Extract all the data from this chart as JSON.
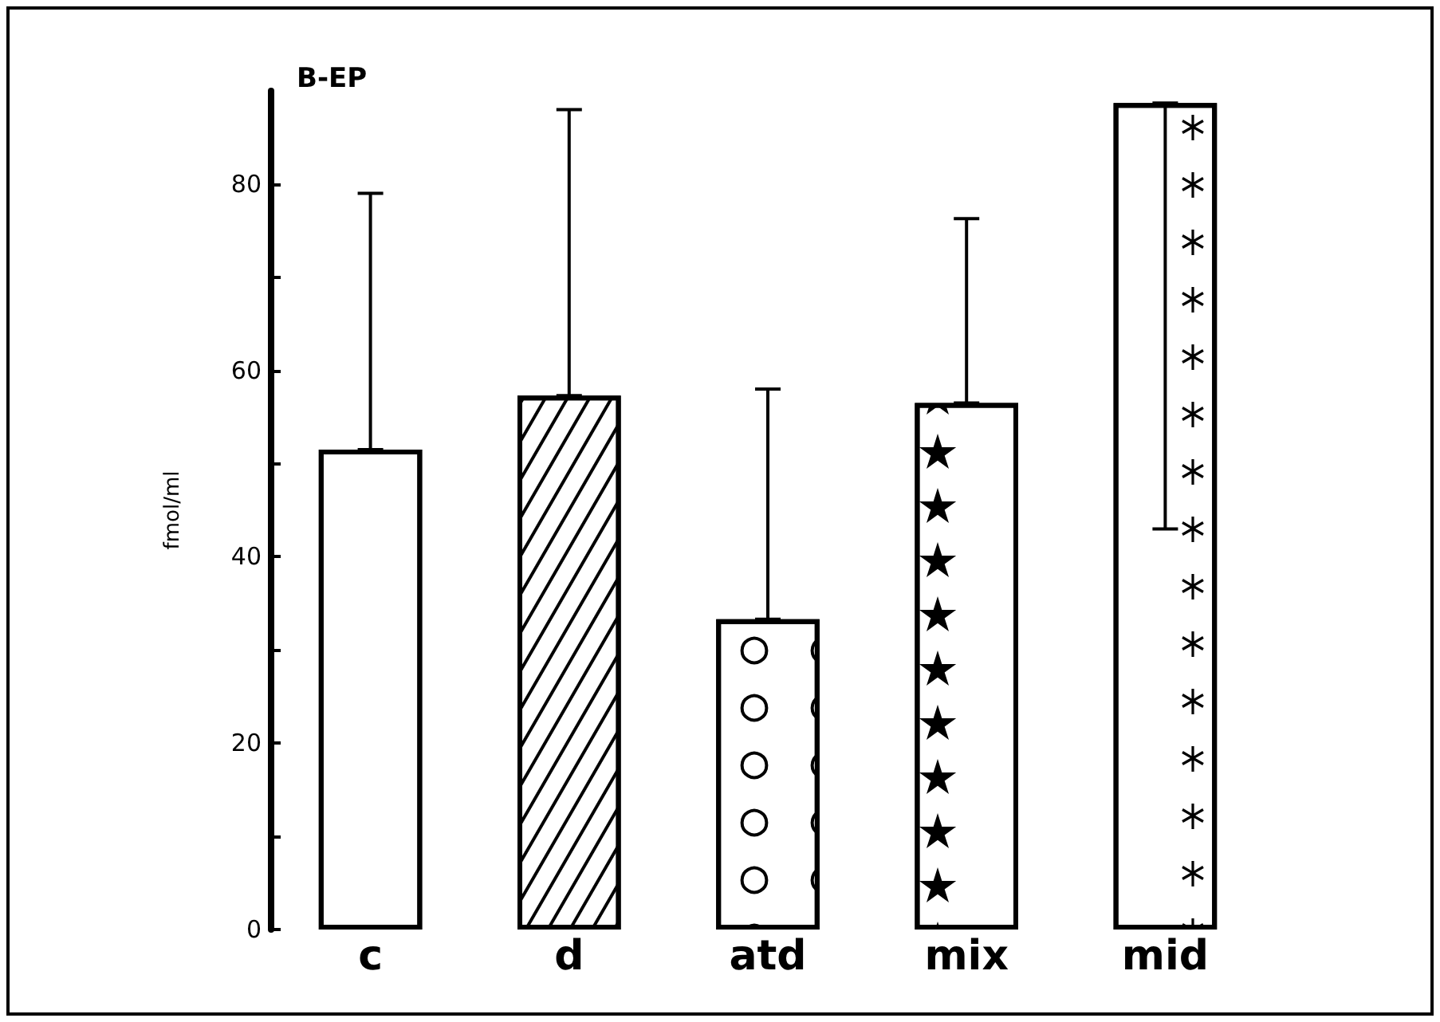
{
  "chart_data": {
    "type": "bar",
    "title": "B-EP",
    "ylabel": "fmol/ml",
    "categories": [
      "c",
      "d",
      "atd",
      "mix",
      "mid"
    ],
    "values": [
      51.5,
      57.3,
      33.3,
      56.5,
      88.7
    ],
    "errors": [
      [
        51.5,
        79
      ],
      [
        57.3,
        88
      ],
      [
        33.3,
        58
      ],
      [
        56.5,
        76.3
      ],
      [
        43,
        88.7
      ]
    ],
    "color": "#ffffff",
    "ylim": [
      0,
      90
    ],
    "yticks": [
      0,
      {
        "value": 10,
        "label": null
      },
      20,
      {
        "value": 30,
        "label": null
      },
      40,
      {
        "value": 50,
        "label": null
      },
      60,
      {
        "value": 70,
        "label": null
      },
      80
    ],
    "grid": false
  }
}
